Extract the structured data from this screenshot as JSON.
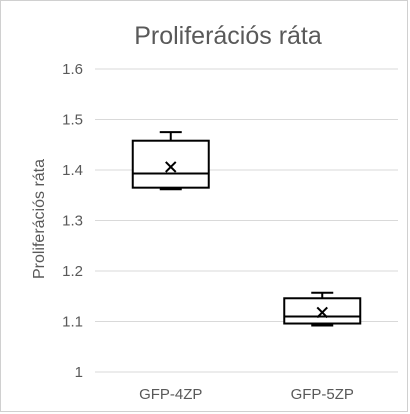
{
  "chart_data": {
    "type": "box",
    "title": "Proliferációs ráta",
    "xlabel": "",
    "ylabel": "Proliferációs ráta",
    "ylim": [
      1,
      1.6
    ],
    "yticks": [
      1,
      1.1,
      1.2,
      1.3,
      1.4,
      1.5,
      1.6
    ],
    "ytick_labels": [
      "1",
      "1.1",
      "1.2",
      "1.3",
      "1.4",
      "1.5",
      "1.6"
    ],
    "grid": true,
    "legend": "none",
    "categories": [
      "GFP-4ZP",
      "GFP-5ZP"
    ],
    "boxes": [
      {
        "category": "GFP-4ZP",
        "min": 1.362,
        "q1": 1.365,
        "median": 1.393,
        "q3": 1.458,
        "max": 1.475,
        "mean": 1.406
      },
      {
        "category": "GFP-5ZP",
        "min": 1.092,
        "q1": 1.096,
        "median": 1.11,
        "q3": 1.146,
        "max": 1.157,
        "mean": 1.118
      }
    ]
  }
}
